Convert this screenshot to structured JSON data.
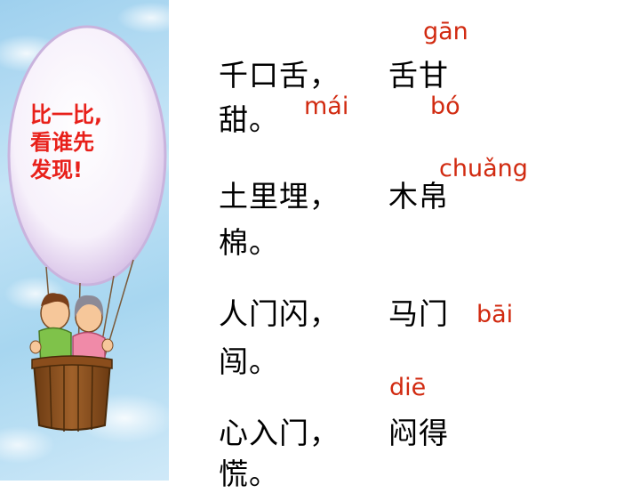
{
  "balloon": {
    "lines": [
      "比一比,",
      "看谁先",
      "发现!"
    ]
  },
  "riddles": [
    {
      "line1": "千口舌，",
      "line2": "甜。",
      "answer": "舌甘"
    },
    {
      "line1": "土里埋，",
      "line2": "棉。",
      "answer": "木帛"
    },
    {
      "line1": "人门闪，",
      "line2": "闯。",
      "answer": "马门"
    },
    {
      "line1": "心入门，",
      "line2": "慌。",
      "answer": "闷得"
    }
  ],
  "pinyin": {
    "gan": "gān",
    "mai": "mái",
    "bo": "bó",
    "chuang": "chuǎng",
    "bai": "bāi",
    "die": "diē"
  }
}
